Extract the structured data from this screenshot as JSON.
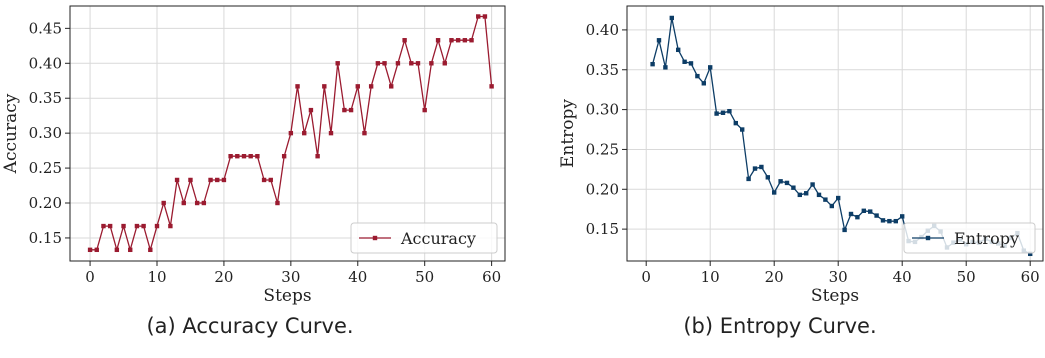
{
  "chart_data": [
    {
      "type": "line",
      "xlabel": "Steps",
      "ylabel": "Accuracy",
      "xlim": [
        -3,
        62
      ],
      "ylim": [
        0.117,
        0.482
      ],
      "xticks": [
        0,
        10,
        20,
        30,
        40,
        50,
        60
      ],
      "yticks": [
        0.15,
        0.2,
        0.25,
        0.3,
        0.35,
        0.4,
        0.45
      ],
      "grid": true,
      "legend": "lower-right",
      "caption": "(a) Accuracy Curve.",
      "series": [
        {
          "name": "Accuracy",
          "color": "#9b1b30",
          "x": [
            0,
            1,
            2,
            3,
            4,
            5,
            6,
            7,
            8,
            9,
            10,
            11,
            12,
            13,
            14,
            15,
            16,
            17,
            18,
            19,
            20,
            21,
            22,
            23,
            24,
            25,
            26,
            27,
            28,
            29,
            30,
            31,
            32,
            33,
            34,
            35,
            36,
            37,
            38,
            39,
            40,
            41,
            42,
            43,
            44,
            45,
            46,
            47,
            48,
            49,
            50,
            51,
            52,
            53,
            54,
            55,
            56,
            57,
            58,
            59,
            60
          ],
          "values": [
            0.133,
            0.133,
            0.167,
            0.167,
            0.133,
            0.167,
            0.133,
            0.167,
            0.167,
            0.133,
            0.167,
            0.2,
            0.167,
            0.233,
            0.2,
            0.233,
            0.2,
            0.2,
            0.233,
            0.233,
            0.233,
            0.267,
            0.267,
            0.267,
            0.267,
            0.267,
            0.233,
            0.233,
            0.2,
            0.267,
            0.3,
            0.367,
            0.3,
            0.333,
            0.267,
            0.367,
            0.3,
            0.4,
            0.333,
            0.333,
            0.367,
            0.3,
            0.367,
            0.4,
            0.4,
            0.367,
            0.4,
            0.433,
            0.4,
            0.4,
            0.333,
            0.4,
            0.433,
            0.4,
            0.433,
            0.433,
            0.433,
            0.433,
            0.467,
            0.467,
            0.367
          ]
        }
      ]
    },
    {
      "type": "line",
      "xlabel": "Steps",
      "ylabel": "Entropy",
      "xlim": [
        -3,
        62
      ],
      "ylim": [
        0.11,
        0.43
      ],
      "xticks": [
        0,
        10,
        20,
        30,
        40,
        50,
        60
      ],
      "yticks": [
        0.15,
        0.2,
        0.25,
        0.3,
        0.35,
        0.4
      ],
      "grid": true,
      "legend": "lower-right",
      "caption": "(b) Entropy Curve.",
      "series": [
        {
          "name": "Entropy",
          "color": "#0d3d66",
          "x": [
            1,
            2,
            3,
            4,
            5,
            6,
            7,
            8,
            9,
            10,
            11,
            12,
            13,
            14,
            15,
            16,
            17,
            18,
            19,
            20,
            21,
            22,
            23,
            24,
            25,
            26,
            27,
            28,
            29,
            30,
            31,
            32,
            33,
            34,
            35,
            36,
            37,
            38,
            39,
            40,
            41,
            42,
            43,
            44,
            45,
            46,
            47,
            48,
            49,
            50,
            51,
            52,
            53,
            54,
            55,
            56,
            57,
            58,
            59,
            60
          ],
          "values": [
            0.357,
            0.387,
            0.353,
            0.415,
            0.375,
            0.36,
            0.358,
            0.342,
            0.333,
            0.353,
            0.295,
            0.296,
            0.298,
            0.283,
            0.275,
            0.213,
            0.226,
            0.228,
            0.215,
            0.196,
            0.21,
            0.208,
            0.202,
            0.193,
            0.195,
            0.206,
            0.193,
            0.187,
            0.179,
            0.189,
            0.149,
            0.169,
            0.165,
            0.173,
            0.172,
            0.167,
            0.161,
            0.16,
            0.16,
            0.166,
            0.135,
            0.134,
            0.14,
            0.148,
            0.154,
            0.147,
            0.127,
            0.133,
            0.137,
            0.131,
            0.134,
            0.133,
            0.138,
            0.134,
            0.132,
            0.129,
            0.139,
            0.145,
            0.123,
            0.119
          ]
        }
      ]
    }
  ]
}
